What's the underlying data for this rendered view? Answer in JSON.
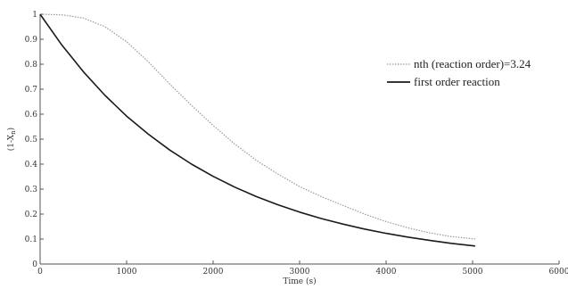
{
  "chart_data": {
    "type": "line",
    "xlabel": "Time (s)",
    "ylabel_main": "(1-X",
    "ylabel_sub": "n",
    "ylabel_close": ")",
    "xlim": [
      0,
      6000
    ],
    "ylim": [
      0,
      1
    ],
    "x_ticks": [
      0,
      1000,
      2000,
      3000,
      4000,
      5000,
      6000
    ],
    "y_ticks": [
      0,
      0.1,
      0.2,
      0.3,
      0.4,
      0.5,
      0.6,
      0.7,
      0.8,
      0.9,
      1
    ],
    "grid": false,
    "legend_position": "top-right",
    "series": [
      {
        "name": "nth (reaction order)=3.24",
        "style": "dotted",
        "color": "#9a9a9a",
        "x": [
          0,
          250,
          500,
          750,
          1000,
          1250,
          1500,
          1750,
          2000,
          2250,
          2500,
          2750,
          3000,
          3250,
          3500,
          3750,
          4000,
          4250,
          4500,
          4750,
          5030
        ],
        "y": [
          1.0,
          0.998,
          0.985,
          0.95,
          0.89,
          0.81,
          0.72,
          0.635,
          0.555,
          0.48,
          0.415,
          0.36,
          0.31,
          0.27,
          0.235,
          0.2,
          0.17,
          0.145,
          0.125,
          0.11,
          0.1
        ]
      },
      {
        "name": "first order reaction",
        "style": "solid",
        "color": "#1a1a1a",
        "x": [
          0,
          250,
          500,
          750,
          1000,
          1250,
          1500,
          1750,
          2000,
          2250,
          2500,
          2750,
          3000,
          3250,
          3500,
          3750,
          4000,
          4250,
          4500,
          4750,
          5030
        ],
        "y": [
          1.0,
          0.877,
          0.77,
          0.675,
          0.592,
          0.52,
          0.456,
          0.4,
          0.351,
          0.308,
          0.27,
          0.237,
          0.208,
          0.182,
          0.16,
          0.14,
          0.123,
          0.108,
          0.095,
          0.083,
          0.072
        ]
      }
    ]
  }
}
